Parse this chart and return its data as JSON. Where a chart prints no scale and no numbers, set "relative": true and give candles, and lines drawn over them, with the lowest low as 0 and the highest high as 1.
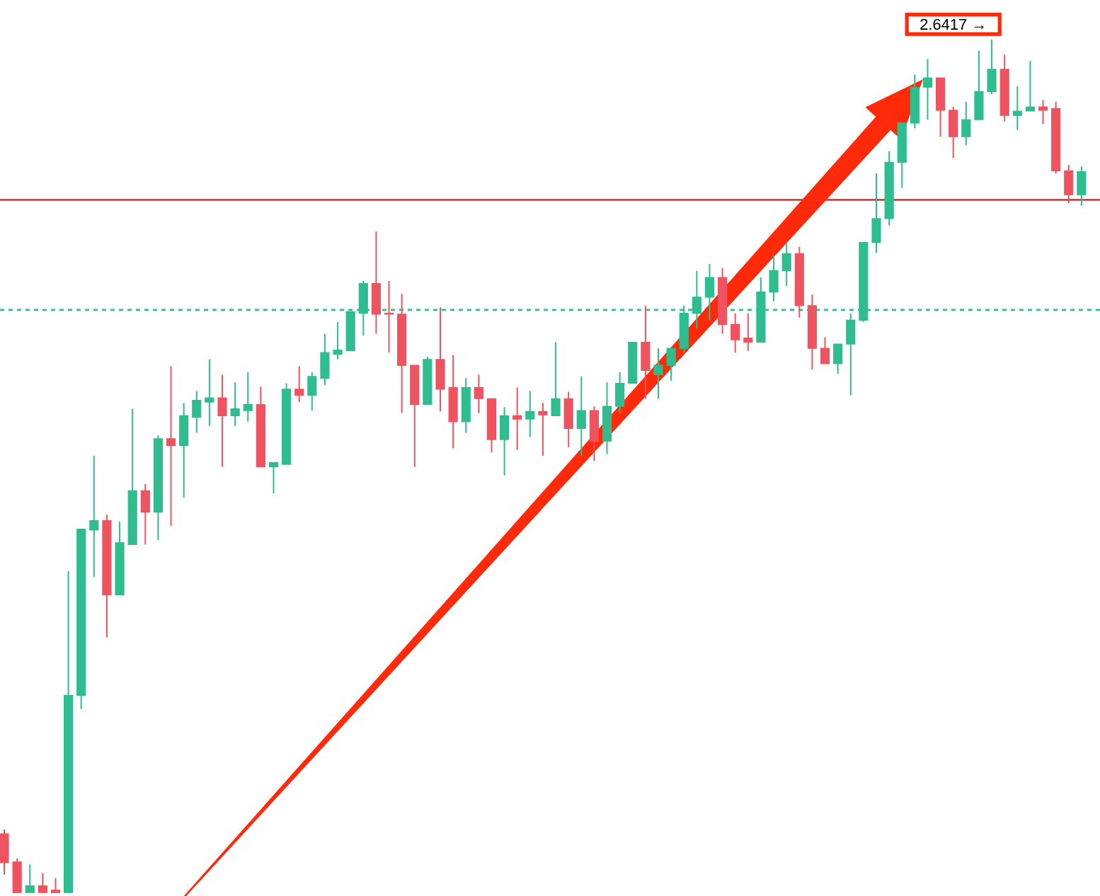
{
  "chart_data": {
    "type": "candlestick",
    "relative": true,
    "categories": [
      null,
      null,
      null,
      null,
      null,
      null,
      null,
      null,
      null,
      null,
      null,
      null,
      null,
      null,
      null,
      null,
      null,
      null,
      null,
      null,
      null,
      null,
      null,
      null,
      null,
      null,
      null,
      null,
      null,
      null,
      null,
      null,
      null,
      null,
      null,
      null,
      null,
      null,
      null,
      null,
      null,
      null,
      null,
      null,
      null,
      null,
      null,
      null,
      null,
      null,
      null,
      null,
      null,
      null,
      null,
      null,
      null,
      null,
      null,
      null,
      null,
      null,
      null,
      null,
      null,
      null,
      null,
      null,
      null,
      null,
      null,
      null,
      null,
      null,
      null,
      null,
      null,
      null,
      null,
      null,
      null,
      null,
      null,
      null,
      null
    ],
    "ohlc": [
      [
        0.069,
        0.074,
        0.021,
        0.035
      ],
      [
        0.036,
        0.04,
        0,
        0
      ],
      [
        0,
        0.033,
        0,
        0.008
      ],
      [
        0.008,
        0.023,
        0,
        0
      ],
      [
        0.003,
        0.017,
        0,
        0
      ],
      [
        0,
        0.377,
        0,
        0.231
      ],
      [
        0.231,
        0.426,
        0.215,
        0.426
      ],
      [
        0.425,
        0.512,
        0.37,
        0.436
      ],
      [
        0.436,
        0.443,
        0.299,
        0.349
      ],
      [
        0.349,
        0.435,
        0.349,
        0.41
      ],
      [
        0.408,
        0.567,
        0.408,
        0.471
      ],
      [
        0.471,
        0.479,
        0.408,
        0.446
      ],
      [
        0.446,
        0.536,
        0.413,
        0.532
      ],
      [
        0.532,
        0.617,
        0.43,
        0.524
      ],
      [
        0.524,
        0.574,
        0.463,
        0.559
      ],
      [
        0.557,
        0.588,
        0.539,
        0.577
      ],
      [
        0.575,
        0.625,
        0.547,
        0.58
      ],
      [
        0.58,
        0.607,
        0.499,
        0.559
      ],
      [
        0.559,
        0.598,
        0.547,
        0.567
      ],
      [
        0.565,
        0.61,
        0.552,
        0.572
      ],
      [
        0.572,
        0.593,
        0.499,
        0.499
      ],
      [
        0.499,
        0.504,
        0.468,
        0.504
      ],
      [
        0.502,
        0.597,
        0.502,
        0.59
      ],
      [
        0.59,
        0.617,
        0.575,
        0.583
      ],
      [
        0.583,
        0.61,
        0.565,
        0.605
      ],
      [
        0.603,
        0.655,
        0.595,
        0.633
      ],
      [
        0.631,
        0.669,
        0.625,
        0.636
      ],
      [
        0.635,
        0.681,
        0.635,
        0.681
      ],
      [
        0.679,
        0.717,
        0.653,
        0.714
      ],
      [
        0.714,
        0.775,
        0.655,
        0.678
      ],
      [
        0.679,
        0.717,
        0.633,
        0.678
      ],
      [
        0.678,
        0.702,
        0.562,
        0.618
      ],
      [
        0.618,
        0.618,
        0.499,
        0.572
      ],
      [
        0.572,
        0.628,
        0.572,
        0.625
      ],
      [
        0.625,
        0.686,
        0.564,
        0.59
      ],
      [
        0.592,
        0.63,
        0.521,
        0.552
      ],
      [
        0.552,
        0.603,
        0.539,
        0.592
      ],
      [
        0.592,
        0.607,
        0.562,
        0.579
      ],
      [
        0.579,
        0.579,
        0.516,
        0.531
      ],
      [
        0.531,
        0.569,
        0.489,
        0.559
      ],
      [
        0.559,
        0.592,
        0.519,
        0.555
      ],
      [
        0.555,
        0.588,
        0.534,
        0.564
      ],
      [
        0.564,
        0.574,
        0.512,
        0.56
      ],
      [
        0.559,
        0.645,
        0.559,
        0.579
      ],
      [
        0.579,
        0.587,
        0.522,
        0.544
      ],
      [
        0.544,
        0.605,
        0.512,
        0.565
      ],
      [
        0.565,
        0.57,
        0.506,
        0.529
      ],
      [
        0.529,
        0.598,
        0.514,
        0.57
      ],
      [
        0.57,
        0.61,
        0.562,
        0.597
      ],
      [
        0.597,
        0.645,
        0.597,
        0.645
      ],
      [
        0.645,
        0.688,
        0.579,
        0.612
      ],
      [
        0.607,
        0.638,
        0.579,
        0.618
      ],
      [
        0.618,
        0.638,
        0.6,
        0.638
      ],
      [
        0.638,
        0.688,
        0.633,
        0.679
      ],
      [
        0.679,
        0.729,
        0.661,
        0.698
      ],
      [
        0.698,
        0.737,
        0.671,
        0.721
      ],
      [
        0.721,
        0.732,
        0.655,
        0.666
      ],
      [
        0.666,
        0.679,
        0.633,
        0.648
      ],
      [
        0.65,
        0.679,
        0.635,
        0.645
      ],
      [
        0.645,
        0.721,
        0.645,
        0.704
      ],
      [
        0.704,
        0.747,
        0.693,
        0.729
      ],
      [
        0.729,
        0.762,
        0.711,
        0.749
      ],
      [
        0.749,
        0.757,
        0.674,
        0.688
      ],
      [
        0.688,
        0.701,
        0.613,
        0.638
      ],
      [
        0.638,
        0.651,
        0.62,
        0.62
      ],
      [
        0.62,
        0.643,
        0.608,
        0.643
      ],
      [
        0.643,
        0.679,
        0.583,
        0.671
      ],
      [
        0.671,
        0.762,
        0.669,
        0.762
      ],
      [
        0.762,
        0.843,
        0.75,
        0.79
      ],
      [
        0.79,
        0.869,
        0.782,
        0.856
      ],
      [
        0.856,
        0.902,
        0.826,
        0.902
      ],
      [
        0.902,
        0.959,
        0.896,
        0.944
      ],
      [
        0.944,
        0.977,
        0.906,
        0.955
      ],
      [
        0.955,
        0.955,
        0.886,
        0.917
      ],
      [
        0.917,
        0.921,
        0.861,
        0.886
      ],
      [
        0.886,
        0.927,
        0.876,
        0.906
      ],
      [
        0.906,
        0.987,
        0.906,
        0.939
      ],
      [
        0.939,
        1,
        0.936,
        0.965
      ],
      [
        0.965,
        0.982,
        0.904,
        0.911
      ],
      [
        0.911,
        0.945,
        0.894,
        0.916
      ],
      [
        0.916,
        0.975,
        0.916,
        0.921
      ],
      [
        0.921,
        0.929,
        0.901,
        0.917
      ],
      [
        0.919,
        0.927,
        0.843,
        0.846
      ],
      [
        0.846,
        0.853,
        0.808,
        0.818
      ],
      [
        0.818,
        0.851,
        0.805,
        0.845
      ]
    ],
    "colors": [
      "#ef5360",
      "#ef5360",
      "#2ebd8e",
      "#ef5360",
      "#ef5360",
      "#2ebd8e",
      "#2ebd8e",
      "#2ebd8e",
      "#ef5360",
      "#2ebd8e",
      "#2ebd8e",
      "#ef5360",
      "#2ebd8e",
      "#ef5360",
      "#2ebd8e",
      "#2ebd8e",
      "#2ebd8e",
      "#ef5360",
      "#2ebd8e",
      "#2ebd8e",
      "#ef5360",
      "#2ebd8e",
      "#2ebd8e",
      "#ef5360",
      "#2ebd8e",
      "#2ebd8e",
      "#2ebd8e",
      "#2ebd8e",
      "#2ebd8e",
      "#ef5360",
      "#ef5360",
      "#ef5360",
      "#ef5360",
      "#2ebd8e",
      "#ef5360",
      "#ef5360",
      "#2ebd8e",
      "#ef5360",
      "#ef5360",
      "#2ebd8e",
      "#ef5360",
      "#2ebd8e",
      "#ef5360",
      "#2ebd8e",
      "#ef5360",
      "#2ebd8e",
      "#ef5360",
      "#2ebd8e",
      "#2ebd8e",
      "#2ebd8e",
      "#ef5360",
      "#2ebd8e",
      "#2ebd8e",
      "#2ebd8e",
      "#2ebd8e",
      "#2ebd8e",
      "#ef5360",
      "#ef5360",
      "#ef5360",
      "#2ebd8e",
      "#2ebd8e",
      "#2ebd8e",
      "#ef5360",
      "#ef5360",
      "#ef5360",
      "#2ebd8e",
      "#2ebd8e",
      "#2ebd8e",
      "#2ebd8e",
      "#2ebd8e",
      "#2ebd8e",
      "#2ebd8e",
      "#2ebd8e",
      "#ef5360",
      "#ef5360",
      "#2ebd8e",
      "#2ebd8e",
      "#2ebd8e",
      "#ef5360",
      "#2ebd8e",
      "#2ebd8e",
      "#ef5360",
      "#ef5360",
      "#ef5360",
      "#2ebd8e"
    ],
    "ref_lines": [
      {
        "axis": "y",
        "value": 0.812,
        "color": "#e53935",
        "line_style": "solid"
      },
      {
        "axis": "y",
        "value": 0.683,
        "color": "#2ebd8e",
        "line_style": "dashed"
      }
    ],
    "annotations": [
      "2.6417 →"
    ]
  }
}
